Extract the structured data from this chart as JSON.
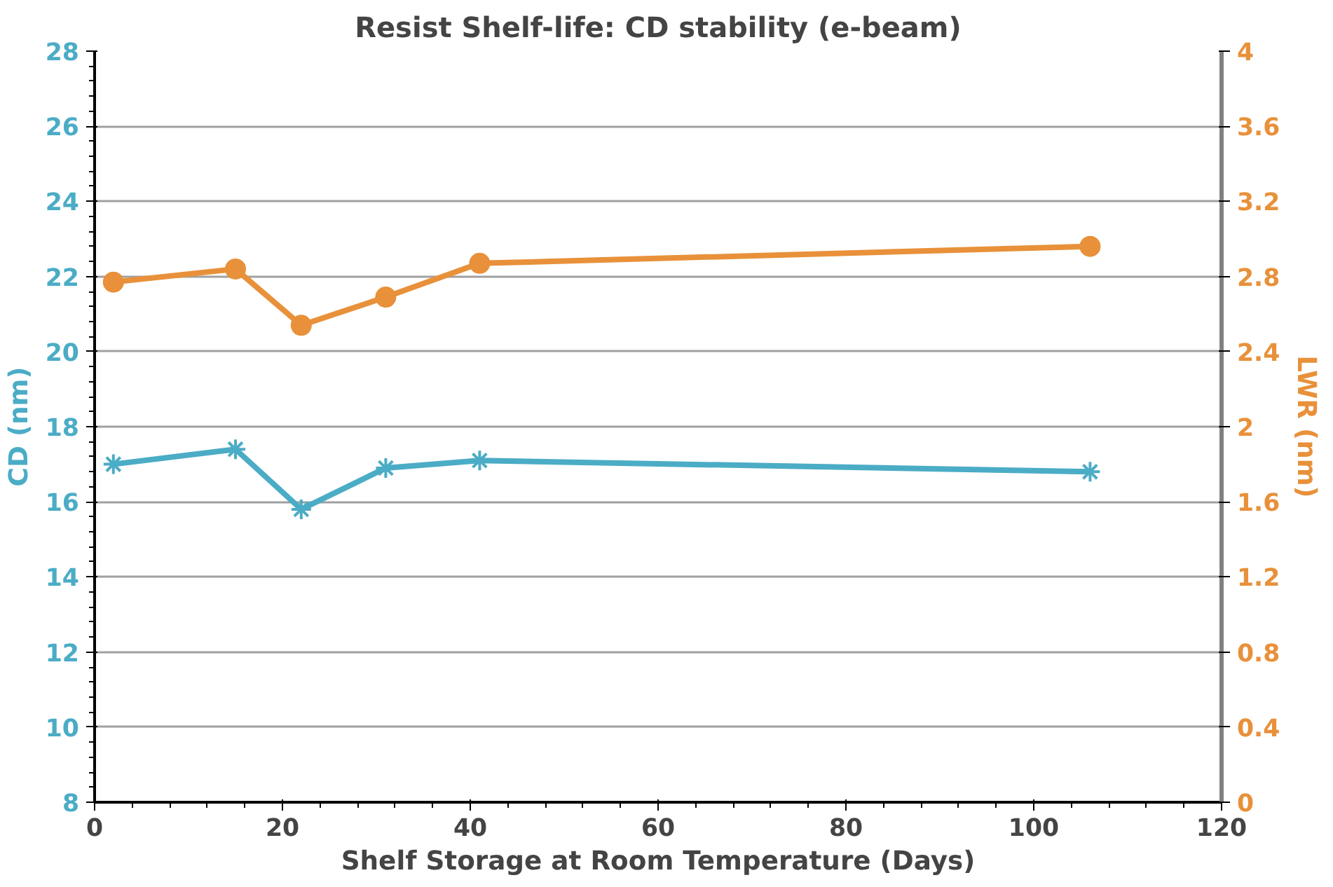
{
  "chart_data": {
    "type": "line",
    "title": "Resist Shelf-life: CD stability (e-beam)",
    "xlabel": "Shelf Storage at Room Temperature (Days)",
    "ylabel": "CD (nm)",
    "y2label": "LWR (nm)",
    "x": [
      2,
      15,
      22,
      31,
      41,
      106
    ],
    "series": [
      {
        "color": "#4bacc6",
        "marker": "cross",
        "values": [
          17.0,
          17.4,
          15.8,
          16.9,
          17.1,
          16.8
        ]
      },
      {
        "color": "#e8913a",
        "marker": "circle",
        "axis": "y2",
        "values": [
          2.77,
          2.84,
          2.54,
          2.69,
          2.87,
          2.96
        ]
      }
    ],
    "xlim": [
      0,
      120
    ],
    "xticks": [
      0,
      20,
      40,
      60,
      80,
      100,
      120
    ],
    "ylim": [
      8,
      28
    ],
    "yticks": [
      8,
      10,
      12,
      14,
      16,
      18,
      20,
      22,
      24,
      26,
      28
    ],
    "y2lim": [
      0,
      4
    ],
    "y2ticks": [
      0,
      {
        "value": 0.4,
        "label": "0.4"
      },
      {
        "value": 0.8,
        "label": "0.8"
      },
      {
        "value": 1.2,
        "label": "1.2"
      },
      {
        "value": 1.6,
        "label": "1.6"
      },
      2,
      {
        "value": 2.4,
        "label": "2.4"
      },
      {
        "value": 2.8,
        "label": "2.8"
      },
      {
        "value": 3.2,
        "label": "3.2"
      },
      {
        "value": 3.6,
        "label": "3.6"
      },
      4
    ],
    "grid": "y"
  }
}
